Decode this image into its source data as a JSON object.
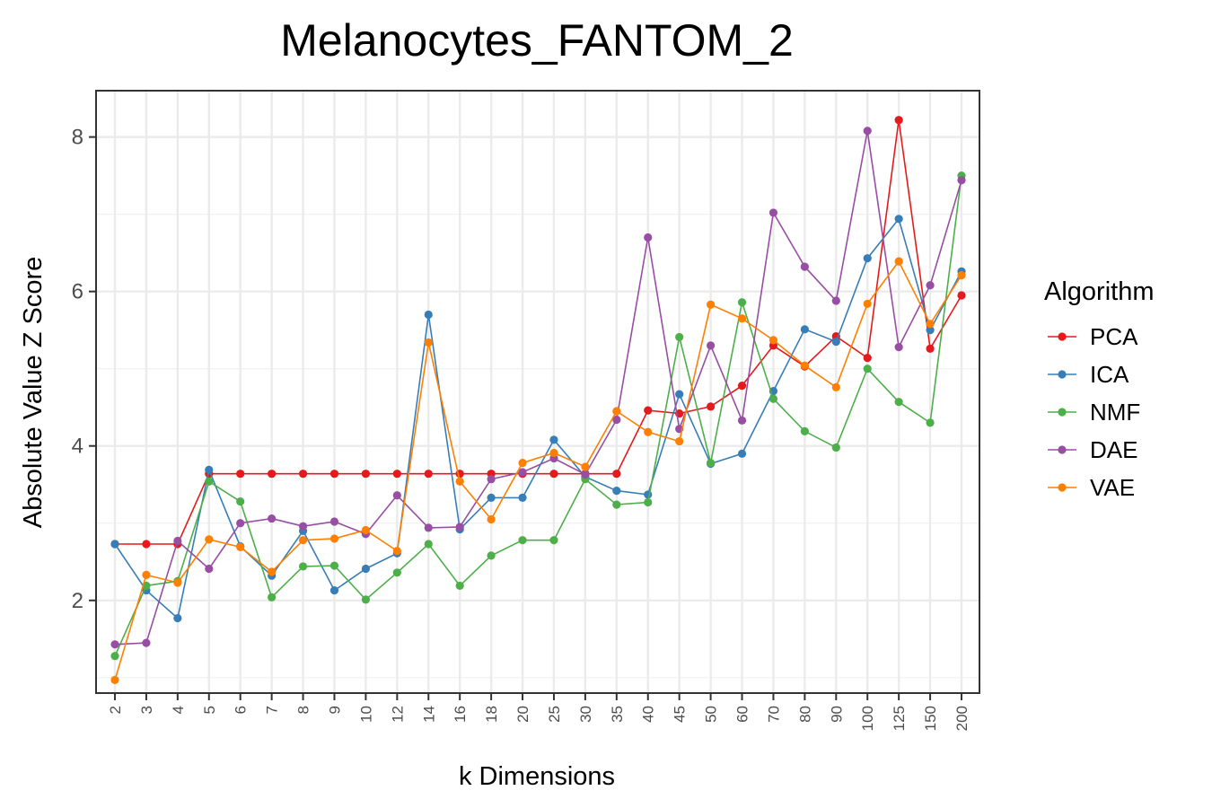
{
  "chart_data": {
    "type": "line",
    "title": "Melanocytes_FANTOM_2",
    "xlabel": "k Dimensions",
    "ylabel": "Absolute Value Z Score",
    "categories": [
      "2",
      "3",
      "4",
      "5",
      "6",
      "7",
      "8",
      "9",
      "10",
      "12",
      "14",
      "16",
      "18",
      "20",
      "25",
      "30",
      "35",
      "40",
      "45",
      "50",
      "60",
      "70",
      "80",
      "90",
      "100",
      "125",
      "150",
      "200"
    ],
    "ylim": [
      0.8,
      8.6
    ],
    "yticks": [
      "2",
      "4",
      "6",
      "8"
    ],
    "grid": true,
    "legend": {
      "title": "Algorithm",
      "position": "right"
    },
    "series": [
      {
        "name": "PCA",
        "color": "#e41a1c",
        "values": [
          2.73,
          2.73,
          2.73,
          3.64,
          3.64,
          3.64,
          3.64,
          3.64,
          3.64,
          3.64,
          3.64,
          3.64,
          3.64,
          3.64,
          3.64,
          3.64,
          3.64,
          4.46,
          4.42,
          4.51,
          4.78,
          5.3,
          5.03,
          5.42,
          5.14,
          8.22,
          5.26,
          5.95
        ]
      },
      {
        "name": "ICA",
        "color": "#377eb8",
        "values": [
          2.73,
          2.13,
          1.77,
          3.69,
          2.7,
          2.32,
          2.9,
          2.13,
          2.41,
          2.61,
          5.7,
          2.92,
          3.33,
          3.33,
          4.08,
          3.6,
          3.42,
          3.37,
          4.67,
          3.77,
          3.9,
          4.71,
          5.51,
          5.35,
          6.43,
          6.94,
          5.5,
          6.26
        ]
      },
      {
        "name": "NMF",
        "color": "#4daf4a",
        "values": [
          1.28,
          2.19,
          2.25,
          3.54,
          3.28,
          2.04,
          2.44,
          2.45,
          2.01,
          2.36,
          2.73,
          2.19,
          2.58,
          2.78,
          2.78,
          3.57,
          3.24,
          3.27,
          5.41,
          3.78,
          5.86,
          4.61,
          4.19,
          3.98,
          5.0,
          4.57,
          4.3,
          7.5
        ]
      },
      {
        "name": "DAE",
        "color": "#984ea3",
        "values": [
          1.43,
          1.45,
          2.77,
          2.41,
          3.0,
          3.06,
          2.96,
          3.02,
          2.86,
          3.36,
          2.94,
          2.95,
          3.57,
          3.66,
          3.84,
          3.63,
          4.34,
          6.7,
          4.22,
          5.3,
          4.33,
          7.02,
          6.32,
          5.88,
          8.08,
          5.28,
          6.08,
          7.44
        ]
      },
      {
        "name": "VAE",
        "color": "#ff7f00",
        "values": [
          0.97,
          2.33,
          2.23,
          2.79,
          2.69,
          2.37,
          2.78,
          2.8,
          2.91,
          2.64,
          5.34,
          3.54,
          3.05,
          3.78,
          3.91,
          3.73,
          4.45,
          4.18,
          4.06,
          5.83,
          5.65,
          5.37,
          5.04,
          4.76,
          5.84,
          6.39,
          5.58,
          6.21
        ]
      }
    ]
  }
}
